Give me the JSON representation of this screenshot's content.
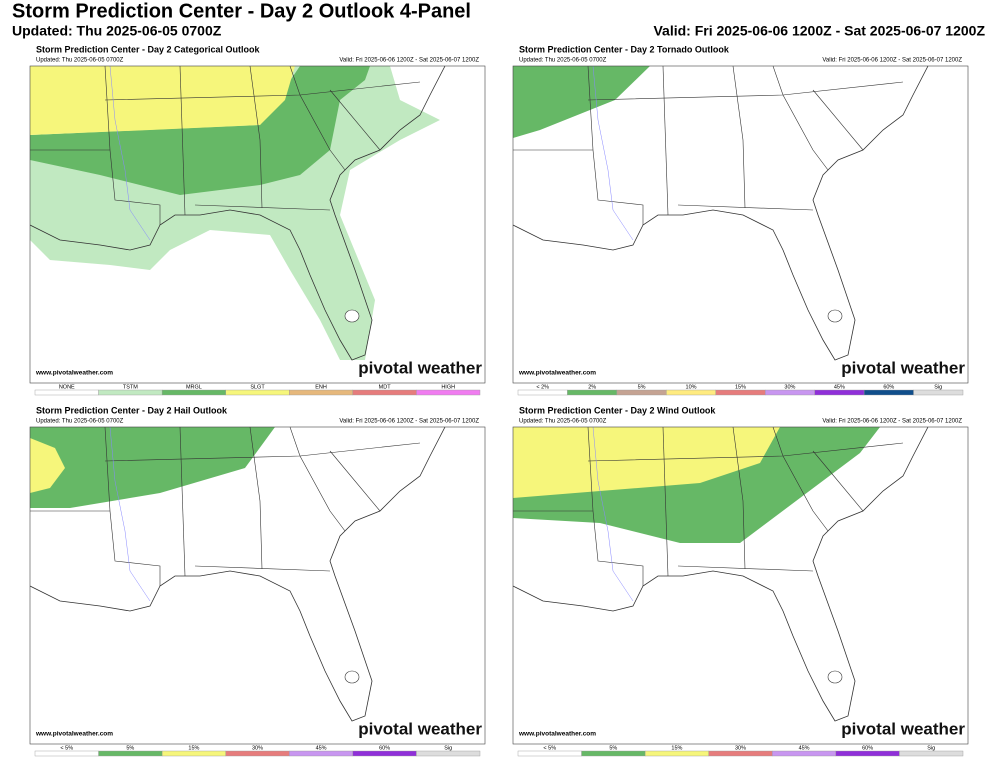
{
  "header": {
    "title": "Storm Prediction Center - Day 2 Outlook 4-Panel",
    "updated": "Updated: Thu 2025-06-05 0700Z",
    "valid": "Valid: Fri 2025-06-06 1200Z - Sat 2025-06-07 1200Z"
  },
  "panels": [
    {
      "title": "Storm Prediction Center - Day 2 Categorical Outlook",
      "updated": "Updated: Thu 2025-06-05 0700Z",
      "valid": "Valid: Fri 2025-06-06 1200Z - Sat 2025-06-07 1200Z",
      "website": "www.pivotalweather.com",
      "watermark": "pivotal weather",
      "legend": [
        {
          "label": "NONE",
          "color": "#ffffff"
        },
        {
          "label": "TSTM",
          "color": "#c1e9c1"
        },
        {
          "label": "MRGL",
          "color": "#66b866"
        },
        {
          "label": "SLGT",
          "color": "#f6f67b"
        },
        {
          "label": "ENH",
          "color": "#e6b87c"
        },
        {
          "label": "MDT",
          "color": "#e67c7c"
        },
        {
          "label": "HIGH",
          "color": "#f07cf0"
        }
      ]
    },
    {
      "title": "Storm Prediction Center - Day 2 Tornado Outlook",
      "updated": "Updated: Thu 2025-06-05 0700Z",
      "valid": "Valid: Fri 2025-06-06 1200Z - Sat 2025-06-07 1200Z",
      "website": "www.pivotalweather.com",
      "watermark": "pivotal weather",
      "legend": [
        {
          "label": "< 2%",
          "color": "#ffffff"
        },
        {
          "label": "2%",
          "color": "#66b866"
        },
        {
          "label": "5%",
          "color": "#c5a393"
        },
        {
          "label": "10%",
          "color": "#ffeb80"
        },
        {
          "label": "15%",
          "color": "#e67c7c"
        },
        {
          "label": "30%",
          "color": "#c896f0"
        },
        {
          "label": "45%",
          "color": "#8f2fd8"
        },
        {
          "label": "60%",
          "color": "#104e8b"
        },
        {
          "label": "Sig",
          "color": "#dddddd"
        }
      ]
    },
    {
      "title": "Storm Prediction Center - Day 2 Hail Outlook",
      "updated": "Updated: Thu 2025-06-05 0700Z",
      "valid": "Valid: Fri 2025-06-06 1200Z - Sat 2025-06-07 1200Z",
      "website": "www.pivotalweather.com",
      "watermark": "pivotal weather",
      "legend": [
        {
          "label": "< 5%",
          "color": "#ffffff"
        },
        {
          "label": "5%",
          "color": "#66b866"
        },
        {
          "label": "15%",
          "color": "#f6f67b"
        },
        {
          "label": "30%",
          "color": "#e67c7c"
        },
        {
          "label": "45%",
          "color": "#c896f0"
        },
        {
          "label": "60%",
          "color": "#8f2fd8"
        },
        {
          "label": "Sig",
          "color": "#dddddd"
        }
      ]
    },
    {
      "title": "Storm Prediction Center - Day 2 Wind Outlook",
      "updated": "Updated: Thu 2025-06-05 0700Z",
      "valid": "Valid: Fri 2025-06-06 1200Z - Sat 2025-06-07 1200Z",
      "website": "www.pivotalweather.com",
      "watermark": "pivotal weather",
      "legend": [
        {
          "label": "< 5%",
          "color": "#ffffff"
        },
        {
          "label": "5%",
          "color": "#66b866"
        },
        {
          "label": "15%",
          "color": "#f6f67b"
        },
        {
          "label": "30%",
          "color": "#e67c7c"
        },
        {
          "label": "45%",
          "color": "#c896f0"
        },
        {
          "label": "60%",
          "color": "#8f2fd8"
        },
        {
          "label": "Sig",
          "color": "#dddddd"
        }
      ]
    }
  ]
}
